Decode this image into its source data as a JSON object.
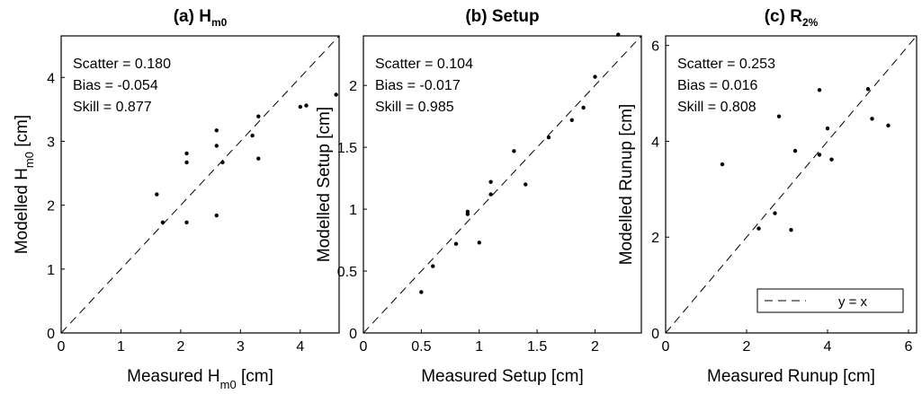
{
  "chart_data": [
    {
      "type": "scatter",
      "title": "(a) H",
      "title_sub": "m0",
      "xlabel": "Measured H",
      "xlabel_sub": "m0",
      "xlabel_unit": " [cm]",
      "ylabel": "Modelled H",
      "ylabel_sub": "m0",
      "ylabel_unit": " [cm]",
      "xlim": [
        0,
        4.65
      ],
      "ylim": [
        0,
        4.65
      ],
      "xticks": [
        0,
        1,
        2,
        3,
        4
      ],
      "yticks": [
        0,
        1,
        2,
        3,
        4
      ],
      "stats": [
        "Scatter = 0.180",
        "Bias = -0.054",
        "Skill = 0.877"
      ],
      "x": [
        1.6,
        1.7,
        2.1,
        2.1,
        2.1,
        2.6,
        2.6,
        2.6,
        2.7,
        3.2,
        3.3,
        3.3,
        4.0,
        4.1,
        4.6
      ],
      "y": [
        2.17,
        1.73,
        2.81,
        2.67,
        1.73,
        3.17,
        2.93,
        1.84,
        2.67,
        3.09,
        3.39,
        2.73,
        3.54,
        3.56,
        3.73
      ]
    },
    {
      "type": "scatter",
      "title": "(b) Setup",
      "xlabel": "Measured Setup",
      "xlabel_unit": " [cm]",
      "ylabel": "Modelled Setup",
      "ylabel_unit": " [cm]",
      "xlim": [
        0,
        2.4
      ],
      "ylim": [
        0,
        2.4
      ],
      "xticks": [
        0,
        0.5,
        1,
        1.5,
        2
      ],
      "ytick_labels": [
        "0",
        "0.5",
        "1",
        "1.5",
        "2"
      ],
      "xtick_labels": [
        "0",
        "0.5",
        "1",
        "1.5",
        "2"
      ],
      "yticks": [
        0,
        0.5,
        1,
        1.5,
        2
      ],
      "stats": [
        "Scatter = 0.104",
        "Bias = -0.017",
        "Skill = 0.985"
      ],
      "x": [
        0.5,
        0.6,
        0.8,
        0.9,
        0.9,
        1.0,
        1.1,
        1.1,
        1.3,
        1.4,
        1.6,
        1.8,
        1.9,
        2.0,
        2.2
      ],
      "y": [
        0.33,
        0.54,
        0.72,
        0.98,
        0.96,
        0.73,
        1.22,
        1.12,
        1.47,
        1.2,
        1.58,
        1.72,
        1.82,
        2.07,
        2.41
      ]
    },
    {
      "type": "scatter",
      "title": "(c) R",
      "title_sub": "2%",
      "xlabel": "Measured Runup",
      "xlabel_unit": " [cm]",
      "ylabel": "Modelled Runup",
      "ylabel_unit": " [cm]",
      "xlim": [
        0,
        6.2
      ],
      "ylim": [
        0,
        6.2
      ],
      "xticks": [
        0,
        2,
        4,
        6
      ],
      "yticks": [
        0,
        2,
        4,
        6
      ],
      "stats": [
        "Scatter = 0.253",
        "Bias = 0.016",
        "Skill = 0.808"
      ],
      "legend": "y = x",
      "legend_position": "bottom-right",
      "x": [
        1.4,
        2.3,
        2.7,
        2.8,
        3.1,
        3.2,
        3.8,
        3.8,
        4.0,
        4.1,
        5.0,
        5.1,
        5.5
      ],
      "y": [
        3.52,
        2.18,
        2.5,
        4.52,
        2.15,
        3.8,
        3.72,
        5.07,
        4.27,
        3.62,
        5.09,
        4.47,
        4.33
      ]
    }
  ]
}
